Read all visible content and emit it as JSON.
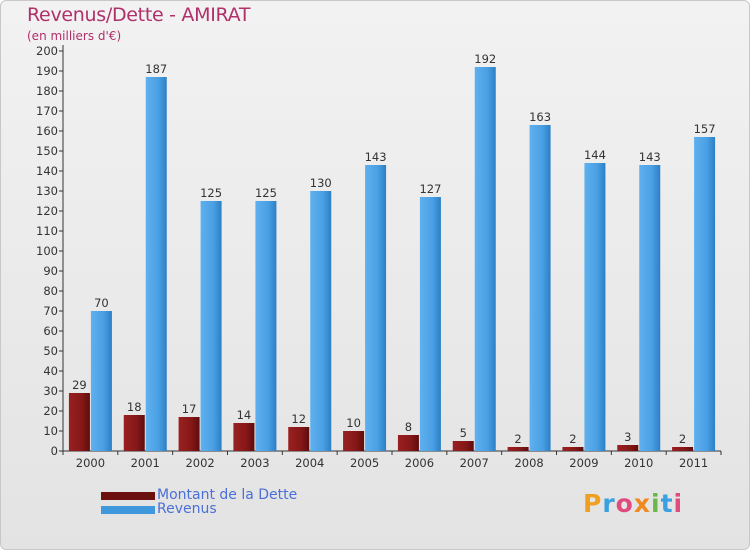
{
  "header": {
    "title": "Revenus/Dette - AMIRAT",
    "subtitle": "(en milliers d'€)"
  },
  "logo": {
    "letters": [
      {
        "ch": "P",
        "color": "#f0a020"
      },
      {
        "ch": "r",
        "color": "#3aa0e0"
      },
      {
        "ch": "o",
        "color": "#e04a7c"
      },
      {
        "ch": "x",
        "color": "#f08a20"
      },
      {
        "ch": "i",
        "color": "#6ab84a"
      },
      {
        "ch": "t",
        "color": "#3aa0e0"
      },
      {
        "ch": "i",
        "color": "#e04a7c"
      }
    ]
  },
  "chart_data": {
    "type": "bar",
    "categories": [
      "2000",
      "2001",
      "2002",
      "2003",
      "2004",
      "2005",
      "2006",
      "2007",
      "2008",
      "2009",
      "2010",
      "2011"
    ],
    "series": [
      {
        "name": "Montant de la Dette",
        "color": "#8b1a1a",
        "values": [
          29,
          18,
          17,
          14,
          12,
          10,
          8,
          5,
          2,
          2,
          3,
          2
        ]
      },
      {
        "name": "Revenus",
        "color": "#4da3e6",
        "values": [
          70,
          187,
          125,
          125,
          130,
          143,
          127,
          192,
          163,
          144,
          143,
          157
        ]
      }
    ],
    "ylim": [
      0,
      200
    ],
    "ytick_step": 10,
    "grid": false,
    "legend_position": "bottom-left"
  }
}
